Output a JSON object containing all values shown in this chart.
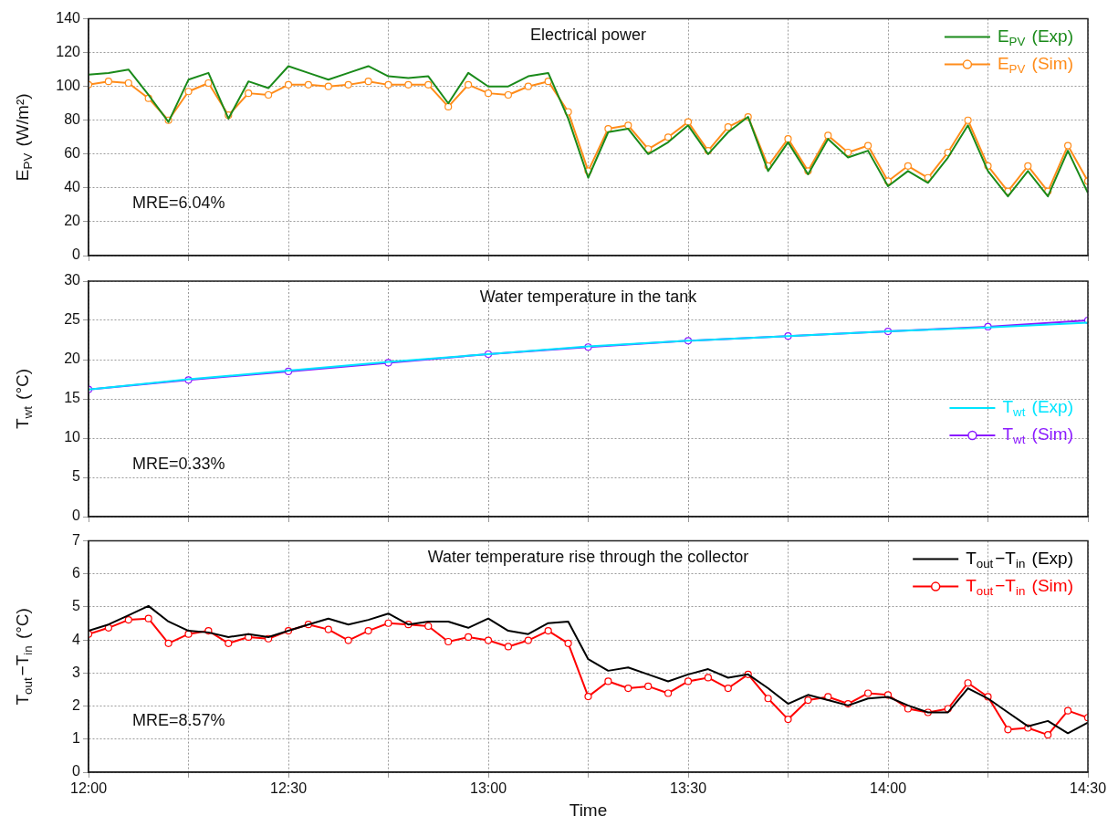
{
  "chart_data": [
    {
      "type": "line",
      "title": "Electrical power",
      "ylabel": "E$_{PV}$ (W/m²)",
      "annotations": [
        "MRE=6.04%"
      ],
      "legend": "top right",
      "grid": true,
      "tick_labels": "y",
      "xticks": [
        {
          "value": 12,
          "label": null
        },
        {
          "value": 12.25,
          "label": null
        },
        {
          "value": 12.5,
          "label": null
        },
        {
          "value": 12.75,
          "label": null
        },
        {
          "value": 13,
          "label": null
        },
        {
          "value": 13.25,
          "label": null
        },
        {
          "value": 13.5,
          "label": null
        },
        {
          "value": 13.75,
          "label": null
        },
        {
          "value": 14,
          "label": null
        },
        {
          "value": 14.25,
          "label": null
        },
        {
          "value": 14.5,
          "label": null
        }
      ],
      "x": [
        12,
        12.05,
        12.1,
        12.15,
        12.2,
        12.25,
        12.3,
        12.35,
        12.4,
        12.45,
        12.5,
        12.55,
        12.6,
        12.65,
        12.7,
        12.75,
        12.8,
        12.85,
        12.9,
        12.95,
        13,
        13.05,
        13.1,
        13.15,
        13.2,
        13.25,
        13.3,
        13.35,
        13.4,
        13.45,
        13.5,
        13.55,
        13.6,
        13.65,
        13.7,
        13.75,
        13.8,
        13.85,
        13.9,
        13.95,
        14,
        14.05,
        14.1,
        14.15,
        14.2,
        14.25,
        14.3,
        14.35,
        14.4,
        14.45,
        14.5
      ],
      "xlim": [
        12,
        14.5
      ],
      "ylim": [
        0,
        140
      ],
      "yticks": [
        0,
        20,
        40,
        60,
        80,
        100,
        120,
        140
      ],
      "series": [
        {
          "name": "E$_{PV}$ (Exp)",
          "color": "#1a8a1a",
          "marker": "none",
          "values": [
            107,
            108,
            110,
            95,
            79,
            104,
            108,
            81,
            103,
            99,
            112,
            108,
            104,
            108,
            112,
            106,
            105,
            106,
            90,
            108,
            100,
            100,
            106,
            108,
            81,
            46,
            73,
            75,
            60,
            67,
            77,
            60,
            73,
            82,
            50,
            67,
            48,
            69,
            58,
            62,
            41,
            50,
            43,
            58,
            77,
            50,
            35,
            50,
            35,
            62,
            37
          ]
        },
        {
          "name": "E$_{PV}$ (Sim)",
          "color": "#ff8c1a",
          "marker": "circle",
          "values": [
            101,
            103,
            102,
            93,
            80,
            97,
            102,
            83,
            96,
            95,
            101,
            101,
            100,
            101,
            103,
            101,
            101,
            101,
            88,
            101,
            96,
            95,
            100,
            103,
            85,
            50,
            75,
            77,
            63,
            70,
            79,
            62,
            76,
            82,
            53,
            69,
            50,
            71,
            61,
            65,
            44,
            53,
            46,
            61,
            80,
            53,
            38,
            53,
            38,
            65,
            44
          ]
        }
      ]
    },
    {
      "type": "line",
      "title": "Water temperature in the tank",
      "ylabel": "T$_{wt}$ (°C)",
      "annotations": [
        "MRE=0.33%"
      ],
      "legend": "right",
      "grid": true,
      "tick_labels": "y",
      "x": [
        12,
        12.25,
        12.5,
        12.75,
        13,
        13.25,
        13.5,
        13.75,
        14,
        14.25,
        14.5
      ],
      "xlim": [
        12,
        14.5
      ],
      "xticks": [
        {
          "value": 12,
          "label": null
        },
        {
          "value": 12.25,
          "label": null
        },
        {
          "value": 12.5,
          "label": null
        },
        {
          "value": 12.75,
          "label": null
        },
        {
          "value": 13,
          "label": null
        },
        {
          "value": 13.25,
          "label": null
        },
        {
          "value": 13.5,
          "label": null
        },
        {
          "value": 13.75,
          "label": null
        },
        {
          "value": 14,
          "label": null
        },
        {
          "value": 14.25,
          "label": null
        },
        {
          "value": 14.5,
          "label": null
        }
      ],
      "ylim": [
        0,
        30
      ],
      "yticks": [
        0,
        5,
        10,
        15,
        20,
        25,
        30
      ],
      "series": [
        {
          "name": "T$_{wt}$ (Exp)",
          "color": "#00e5ff",
          "marker": "none",
          "values": [
            16.2,
            17.5,
            18.6,
            19.7,
            20.7,
            21.7,
            22.4,
            23.0,
            23.6,
            24.1,
            24.7
          ]
        },
        {
          "name": "T$_{wt}$ (Sim)",
          "color": "#8b1aff",
          "marker": "circle",
          "values": [
            16.2,
            17.4,
            18.5,
            19.6,
            20.7,
            21.6,
            22.4,
            23.0,
            23.6,
            24.2,
            25.0
          ]
        }
      ]
    },
    {
      "type": "line",
      "title": "Water temperature rise through the collector",
      "xlabel": "Time",
      "ylabel": "T$_{out}$−T$_{in}$ (°C)",
      "annotations": [
        "MRE=8.57%"
      ],
      "legend": "top right",
      "grid": true,
      "x": [
        12,
        12.05,
        12.1,
        12.15,
        12.2,
        12.25,
        12.3,
        12.35,
        12.4,
        12.45,
        12.5,
        12.55,
        12.6,
        12.65,
        12.7,
        12.75,
        12.8,
        12.85,
        12.9,
        12.95,
        13,
        13.05,
        13.1,
        13.15,
        13.2,
        13.25,
        13.3,
        13.35,
        13.4,
        13.45,
        13.5,
        13.55,
        13.6,
        13.65,
        13.7,
        13.75,
        13.8,
        13.85,
        13.9,
        13.95,
        14,
        14.05,
        14.1,
        14.15,
        14.2,
        14.25,
        14.3,
        14.35,
        14.4,
        14.45,
        14.5
      ],
      "xlim": [
        12,
        14.5
      ],
      "xticks": [
        {
          "value": 12,
          "label": "12:00"
        },
        {
          "value": 12.25,
          "label": null
        },
        {
          "value": 12.5,
          "label": "12:30"
        },
        {
          "value": 12.75,
          "label": null
        },
        {
          "value": 13,
          "label": "13:00"
        },
        {
          "value": 13.25,
          "label": null
        },
        {
          "value": 13.5,
          "label": "13:30"
        },
        {
          "value": 13.75,
          "label": null
        },
        {
          "value": 14,
          "label": "14:00"
        },
        {
          "value": 14.25,
          "label": null
        },
        {
          "value": 14.5,
          "label": "14:30"
        }
      ],
      "ylim": [
        0,
        7
      ],
      "yticks": [
        0,
        1,
        2,
        3,
        4,
        5,
        6,
        7
      ],
      "series": [
        {
          "name": "T$_{out}$−T$_{in}$ (Exp)",
          "color": "#000000",
          "marker": "none",
          "values": [
            4.28,
            4.47,
            4.75,
            5.03,
            4.56,
            4.28,
            4.23,
            4.09,
            4.18,
            4.09,
            4.28,
            4.47,
            4.65,
            4.47,
            4.61,
            4.8,
            4.47,
            4.56,
            4.56,
            4.37,
            4.65,
            4.28,
            4.18,
            4.51,
            4.56,
            3.42,
            3.07,
            3.17,
            2.96,
            2.75,
            2.96,
            3.12,
            2.86,
            2.96,
            2.54,
            2.07,
            2.34,
            2.18,
            2.02,
            2.23,
            2.28,
            2.02,
            1.81,
            1.81,
            2.54,
            2.23,
            1.81,
            1.39,
            1.55,
            1.18,
            1.5
          ]
        },
        {
          "name": "T$_{out}$−T$_{in}$ (Sim)",
          "color": "#ff0000",
          "marker": "circle",
          "values": [
            4.18,
            4.37,
            4.61,
            4.65,
            3.9,
            4.18,
            4.28,
            3.9,
            4.09,
            4.04,
            4.28,
            4.47,
            4.32,
            3.99,
            4.28,
            4.51,
            4.47,
            4.42,
            3.95,
            4.09,
            3.99,
            3.8,
            3.99,
            4.28,
            3.9,
            2.29,
            2.75,
            2.54,
            2.6,
            2.39,
            2.75,
            2.86,
            2.54,
            2.96,
            2.23,
            1.6,
            2.18,
            2.28,
            2.07,
            2.39,
            2.34,
            1.92,
            1.81,
            1.92,
            2.7,
            2.28,
            1.29,
            1.34,
            1.13,
            1.86,
            1.65
          ]
        }
      ]
    }
  ]
}
